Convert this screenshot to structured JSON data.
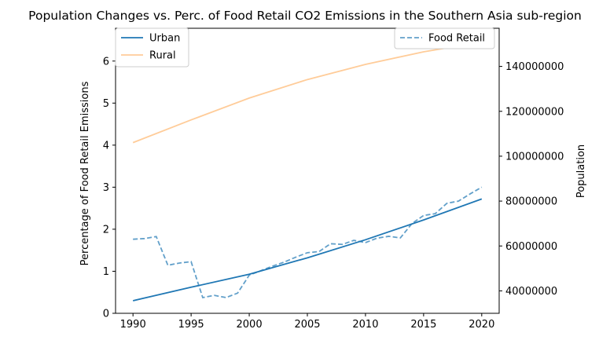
{
  "chart_data": {
    "type": "line",
    "title": "Population Changes vs. Perc. of Food Retail CO2 Emissions in the Southern Asia sub-region",
    "xlabel": "",
    "ylabel": "Percentage of Food Retail Emissions",
    "y2label": "Population",
    "xlim": [
      1988.5,
      2021.5
    ],
    "ylim": [
      0,
      6.78
    ],
    "y2lim": [
      30000000,
      157000000
    ],
    "xticks": [
      "1990",
      "1995",
      "2000",
      "2005",
      "2010",
      "2015",
      "2020"
    ],
    "yticks": [
      "0",
      "1",
      "2",
      "3",
      "4",
      "5",
      "6"
    ],
    "y2ticks": [
      "40000000",
      "60000000",
      "80000000",
      "100000000",
      "120000000",
      "140000000"
    ],
    "legend_left": "top-left",
    "legend_right": "top-right",
    "grid": false,
    "series": [
      {
        "name": "Urban",
        "axis": "y",
        "style": "solid",
        "color": "#1f77b4",
        "x": [
          1990,
          1995,
          2000,
          2005,
          2010,
          2015,
          2020
        ],
        "values": [
          0.3,
          0.62,
          0.93,
          1.32,
          1.75,
          2.22,
          2.72
        ]
      },
      {
        "name": "Rural",
        "axis": "y",
        "style": "solid",
        "color": "#ffcc99",
        "x": [
          1990,
          1995,
          2000,
          2005,
          2010,
          2015,
          2020
        ],
        "values": [
          4.06,
          4.6,
          5.12,
          5.56,
          5.92,
          6.22,
          6.45
        ]
      },
      {
        "name": "Food Retail",
        "axis": "y2",
        "style": "dashed",
        "color": "#1f77b4",
        "x": [
          1990,
          1991,
          1992,
          1993,
          1994,
          1995,
          1996,
          1997,
          1998,
          1999,
          2000,
          2001,
          2002,
          2003,
          2004,
          2005,
          2006,
          2007,
          2008,
          2009,
          2010,
          2011,
          2012,
          2013,
          2014,
          2015,
          2016,
          2017,
          2018,
          2019,
          2020
        ],
        "values": [
          63000000,
          63300000,
          64200000,
          51400000,
          52400000,
          53000000,
          37000000,
          38000000,
          37000000,
          39000000,
          47000000,
          49000000,
          51000000,
          52800000,
          55000000,
          57000000,
          57500000,
          61000000,
          60700000,
          62500000,
          61500000,
          63500000,
          64300000,
          63600000,
          70000000,
          73600000,
          74400000,
          79000000,
          80000000,
          83200000,
          86200000
        ]
      }
    ]
  }
}
